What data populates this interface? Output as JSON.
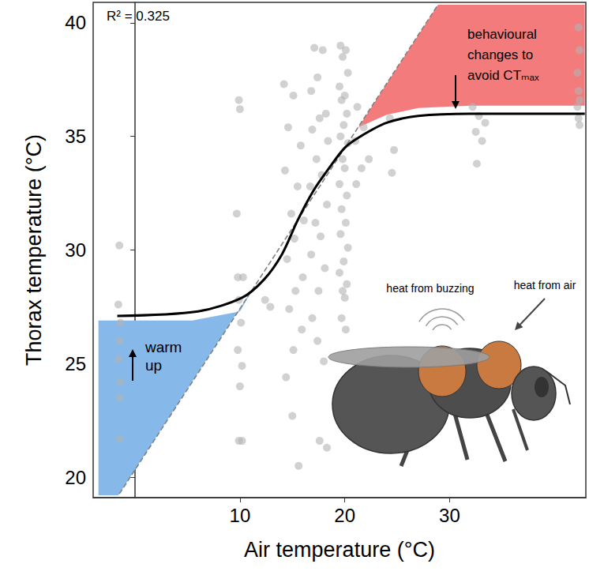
{
  "chart_data": {
    "type": "scatter",
    "xlabel": "Air temperature (°C)",
    "ylabel": "Thorax temperature (°C)",
    "xlim": [
      -4,
      43
    ],
    "ylim": [
      19.1,
      40.9
    ],
    "xticks": [
      10,
      20,
      30
    ],
    "yticks": [
      20,
      25,
      30,
      35,
      40
    ],
    "grid": false,
    "annotations": [
      "R² = 0.325",
      "warm up",
      "behavioural changes to avoid CTₘₐₓ",
      "heat from buzzing",
      "heat from air"
    ],
    "series": [
      {
        "type": "area",
        "color": "#86b9e9",
        "x": [
          -3.5,
          5.5,
          10.0,
          11.5,
          -1.6,
          -3.5
        ],
        "values": [
          26.9,
          26.9,
          27.3,
          28.5,
          19.2,
          19.2
        ]
      },
      {
        "type": "area",
        "color": "#f47b7b",
        "x": [
          21.3,
          24.0,
          27.0,
          32.0,
          42.9,
          42.9,
          28.9
        ],
        "values": [
          35.4,
          35.95,
          36.25,
          36.35,
          36.35,
          40.8,
          40.8
        ]
      },
      {
        "type": "scatter",
        "color": "#b3b3b3",
        "marker": "circle",
        "x": [
          -1.5,
          -1.6,
          -1.4,
          -1.5,
          -1.6,
          -1.4,
          -1.5,
          -1.5,
          9.9,
          10.0,
          9.7,
          9.8,
          10.3,
          9.9,
          10.1,
          9.8,
          10.2,
          10.0,
          9.9,
          10.2,
          12.4,
          12.9,
          14.2,
          15.1,
          14.6,
          15.8,
          14.3,
          15.5,
          14.9,
          16.1,
          15.2,
          14.5,
          16.0,
          15.3,
          14.7,
          15.9,
          15.1,
          14.4,
          15.0,
          15.6,
          17.1,
          17.9,
          17.4,
          16.8,
          18.2,
          17.6,
          16.9,
          18.4,
          17.3,
          17.8,
          16.7,
          18.3,
          17.2,
          17.7,
          16.8,
          18.1,
          17.5,
          16.9,
          17.4,
          18.0,
          17.6,
          18.3,
          19.6,
          20.1,
          19.8,
          20.3,
          19.5,
          20.0,
          19.7,
          20.2,
          19.9,
          19.6,
          20.3,
          19.8,
          20.0,
          19.5,
          20.2,
          19.7,
          20.1,
          19.6,
          20.3,
          19.9,
          19.5,
          20.2,
          19.8,
          20.0,
          19.7,
          20.1,
          21.2,
          21.8,
          21.0,
          22.3,
          21.6,
          21.1,
          24.3,
          24.7,
          24.5,
          32.2,
          32.8,
          33.4,
          32.5,
          33.1,
          32.6,
          42.3,
          42.4,
          42.2,
          42.3,
          42.4,
          42.2,
          42.3,
          42.4
        ],
        "values": [
          30.2,
          27.6,
          26.8,
          26.0,
          25.2,
          24.2,
          23.5,
          21.7,
          36.6,
          36.2,
          31.6,
          28.8,
          28.8,
          27.8,
          26.8,
          25.6,
          24.9,
          24.0,
          21.6,
          21.6,
          27.8,
          27.5,
          37.3,
          36.8,
          35.4,
          34.6,
          33.5,
          32.8,
          31.6,
          31.3,
          30.5,
          29.6,
          28.8,
          28.2,
          27.4,
          26.5,
          25.6,
          24.4,
          22.7,
          20.5,
          38.9,
          38.8,
          37.6,
          37.0,
          36.0,
          35.8,
          35.3,
          34.8,
          34.0,
          33.3,
          32.8,
          32.0,
          31.2,
          30.6,
          29.8,
          29.2,
          28.2,
          27.0,
          26.0,
          25.1,
          21.6,
          21.3,
          39.0,
          38.8,
          38.5,
          37.8,
          37.2,
          36.8,
          36.6,
          36.0,
          35.5,
          35.0,
          34.7,
          34.0,
          33.6,
          32.9,
          32.4,
          31.8,
          31.2,
          30.7,
          30.1,
          29.5,
          29.0,
          28.5,
          28.2,
          27.9,
          27.0,
          26.5,
          36.3,
          35.4,
          34.8,
          34.0,
          33.6,
          32.9,
          35.8,
          34.4,
          33.4,
          36.3,
          35.9,
          35.6,
          35.2,
          34.8,
          33.8,
          39.8,
          38.8,
          37.8,
          37.0,
          36.6,
          36.3,
          35.8,
          35.5
        ]
      },
      {
        "type": "line",
        "color": "#808080",
        "line_style": "dashed",
        "x": [
          -1.5,
          28.9
        ],
        "values": [
          19.27,
          40.8
        ]
      },
      {
        "type": "line",
        "color": "#000000",
        "line_style": "solid",
        "x": [
          -1.7,
          6.0,
          10.2,
          12.3,
          14.0,
          15.5,
          17.0,
          18.5,
          20.0,
          21.5,
          24.0,
          27.0,
          32.0,
          42.9
        ],
        "values": [
          27.1,
          27.3,
          27.9,
          28.7,
          29.8,
          31.3,
          32.6,
          33.6,
          34.5,
          35.0,
          35.6,
          35.9,
          36.0,
          36.0
        ]
      }
    ]
  }
}
